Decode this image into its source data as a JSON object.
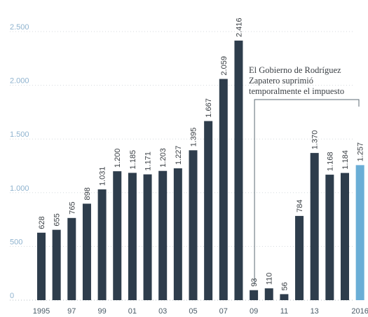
{
  "chart_data": {
    "type": "bar",
    "categories": [
      "1995",
      "1996",
      "1997",
      "1998",
      "1999",
      "2000",
      "2001",
      "2002",
      "2003",
      "2004",
      "2005",
      "2006",
      "2007",
      "2008",
      "2009",
      "2010",
      "2011",
      "2012",
      "2013",
      "2014",
      "2015",
      "2016"
    ],
    "values": [
      628,
      655,
      765,
      898,
      1031,
      1200,
      1185,
      1171,
      1203,
      1227,
      1395,
      1667,
      2059,
      2416,
      93,
      110,
      56,
      784,
      1370,
      1168,
      1184,
      1257
    ],
    "value_labels": [
      "628",
      "655",
      "765",
      "898",
      "1.031",
      "1.200",
      "1.185",
      "1.171",
      "1.203",
      "1.227",
      "1.395",
      "1.667",
      "2.059",
      "2.416",
      "93",
      "110",
      "56",
      "784",
      "1.370",
      "1.168",
      "1.184",
      "1.257"
    ],
    "x_tick_labels": [
      {
        "category": "1995",
        "label": "1995"
      },
      {
        "category": "1997",
        "label": "97"
      },
      {
        "category": "1999",
        "label": "99"
      },
      {
        "category": "2001",
        "label": "01"
      },
      {
        "category": "2003",
        "label": "03"
      },
      {
        "category": "2005",
        "label": "05"
      },
      {
        "category": "2007",
        "label": "07"
      },
      {
        "category": "2009",
        "label": "09"
      },
      {
        "category": "2011",
        "label": "11"
      },
      {
        "category": "2013",
        "label": "13"
      },
      {
        "category": "2016",
        "label": "2016"
      }
    ],
    "y_ticks": [
      {
        "value": 0,
        "label": "0"
      },
      {
        "value": 500,
        "label": "500"
      },
      {
        "value": 1000,
        "label": "1.000"
      },
      {
        "value": 1500,
        "label": "1.500"
      },
      {
        "value": 2000,
        "label": "2.000"
      },
      {
        "value": 2500,
        "label": "2.500"
      }
    ],
    "ylim": [
      0,
      2500
    ],
    "grid": true,
    "colors": {
      "bar": "#2e3d4c",
      "highlight": "#6aaed6"
    },
    "highlight_category": "2016",
    "annotation": {
      "lines": [
        "El Gobierno de Rodríguez",
        "Zapatero suprimió",
        "temporalmente el impuesto"
      ],
      "from_category": "2009",
      "to_category": "2011"
    }
  }
}
